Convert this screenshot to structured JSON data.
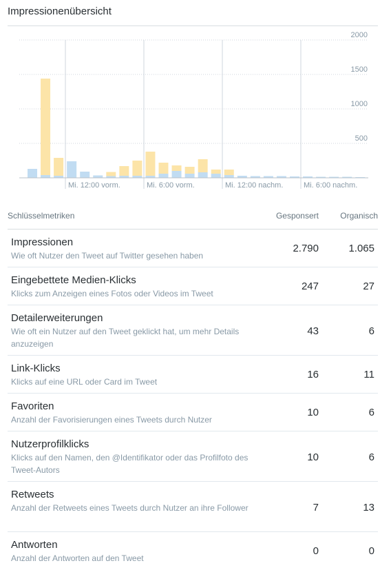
{
  "header": {
    "title": "Impressionenübersicht"
  },
  "chart_data": {
    "type": "bar",
    "stacked": true,
    "y_ticks": [
      "2000",
      "1500",
      "1000",
      "500"
    ],
    "ylim": [
      0,
      2000
    ],
    "x_tick_labels": [
      "Mi. 12:00 vorm.",
      "Mi. 6:00 vorm.",
      "Mi. 12:00 nachm.",
      "Mi. 6:00 nachm."
    ],
    "grid": true,
    "colors": {
      "sponsored": "#fce4a8",
      "organic": "#c1dcf2"
    },
    "series": [
      {
        "key": "organic",
        "values": [
          130,
          40,
          30,
          240,
          90,
          35,
          25,
          30,
          30,
          30,
          60,
          100,
          60,
          80,
          60,
          40,
          30,
          25,
          25,
          25,
          20,
          20,
          15,
          15,
          15,
          10
        ]
      },
      {
        "key": "sponsored",
        "values": [
          0,
          1400,
          260,
          0,
          0,
          0,
          60,
          140,
          220,
          350,
          160,
          80,
          100,
          190,
          60,
          80,
          0,
          0,
          0,
          0,
          0,
          0,
          0,
          0,
          0,
          0
        ]
      }
    ]
  },
  "table": {
    "headers": {
      "metric": "Schlüsselmetriken",
      "sponsored": "Gesponsert",
      "organic": "Organisch"
    },
    "rows": [
      {
        "name": "Impressionen",
        "desc": "Wie oft Nutzer den Tweet auf Twitter gesehen haben",
        "sponsored": "2.790",
        "organic": "1.065"
      },
      {
        "name": "Eingebettete Medien-Klicks",
        "desc": "Klicks zum Anzeigen eines Fotos oder Videos im Tweet",
        "sponsored": "247",
        "organic": "27"
      },
      {
        "name": "Detailerweiterungen",
        "desc": "Wie oft ein Nutzer auf den Tweet geklickt hat, um mehr Details anzuzeigen",
        "sponsored": "43",
        "organic": "6"
      },
      {
        "name": "Link-Klicks",
        "desc": "Klicks auf eine URL oder Card im Tweet",
        "sponsored": "16",
        "organic": "11"
      },
      {
        "name": "Favoriten",
        "desc": "Anzahl der Favorisierungen eines Tweets durch Nutzer",
        "sponsored": "10",
        "organic": "6"
      },
      {
        "name": "Nutzerprofilklicks",
        "desc": "Klicks auf den Namen, den @Identifikator oder das Profilfoto des Tweet-Autors",
        "sponsored": "10",
        "organic": "6"
      },
      {
        "name": "Retweets",
        "desc": "Anzahl der Retweets eines Tweets durch Nutzer an ihre Follower",
        "sponsored": "7",
        "organic": "13"
      },
      {
        "name": "Antworten",
        "desc": "Anzahl der Antworten auf den Tweet",
        "sponsored": "0",
        "organic": "0"
      }
    ]
  }
}
